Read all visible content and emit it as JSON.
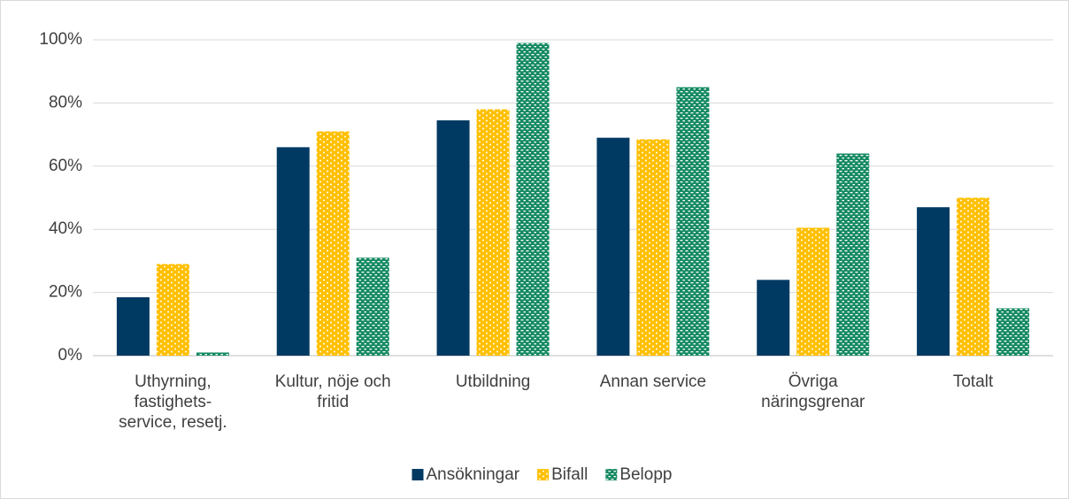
{
  "chart_data": {
    "type": "bar",
    "categories": [
      "Uthyrning, fastighets-service, resetj.",
      "Kultur, nöje och fritid",
      "Utbildning",
      "Annan service",
      "Övriga näringsgrenar",
      "Totalt"
    ],
    "series": [
      {
        "name": "Ansökningar",
        "color": "#003a63",
        "pattern": "solid",
        "values": [
          18.5,
          66,
          74.5,
          69,
          24,
          47
        ]
      },
      {
        "name": "Bifall",
        "color": "#ffc000",
        "pattern": "dots",
        "values": [
          29,
          71,
          78,
          68.5,
          40.5,
          50
        ]
      },
      {
        "name": "Belopp",
        "color": "#158a62",
        "pattern": "dashes",
        "values": [
          1,
          31,
          99,
          85,
          64,
          15
        ]
      }
    ],
    "ylim": [
      0,
      100
    ],
    "yticks": [
      {
        "value": 0,
        "label": "0%"
      },
      {
        "value": 20,
        "label": "20%"
      },
      {
        "value": 40,
        "label": "40%"
      },
      {
        "value": 60,
        "label": "60%"
      },
      {
        "value": 80,
        "label": "80%"
      },
      {
        "value": 100,
        "label": "100%"
      }
    ],
    "grid": true,
    "legend": "bottom"
  }
}
